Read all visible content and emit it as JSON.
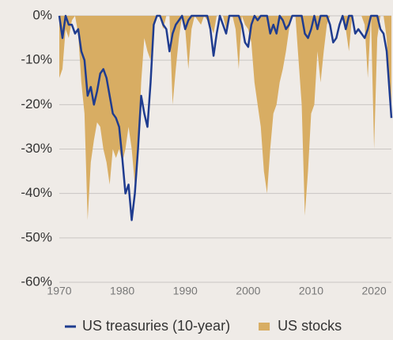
{
  "chart_data": {
    "type": "drawdown",
    "x": [
      1970,
      1970.5,
      1971,
      1971.5,
      1972,
      1972.5,
      1973,
      1973.5,
      1974,
      1974.5,
      1975,
      1975.5,
      1976,
      1976.5,
      1977,
      1977.5,
      1978,
      1978.5,
      1979,
      1979.5,
      1980,
      1980.5,
      1981,
      1981.5,
      1982,
      1982.5,
      1983,
      1983.5,
      1984,
      1984.5,
      1985,
      1985.5,
      1986,
      1986.5,
      1987,
      1987.5,
      1988,
      1988.5,
      1989,
      1989.5,
      1990,
      1990.5,
      1991,
      1991.5,
      1992,
      1992.5,
      1993,
      1993.5,
      1994,
      1994.5,
      1995,
      1995.5,
      1996,
      1996.5,
      1997,
      1997.5,
      1998,
      1998.5,
      1999,
      1999.5,
      2000,
      2000.5,
      2001,
      2001.5,
      2002,
      2002.5,
      2003,
      2003.5,
      2004,
      2004.5,
      2005,
      2005.5,
      2006,
      2006.5,
      2007,
      2007.5,
      2008,
      2008.5,
      2009,
      2009.5,
      2010,
      2010.5,
      2011,
      2011.5,
      2012,
      2012.5,
      2013,
      2013.5,
      2014,
      2014.5,
      2015,
      2015.5,
      2016,
      2016.5,
      2017,
      2017.5,
      2018,
      2018.5,
      2019,
      2019.5,
      2020,
      2020.5,
      2021,
      2021.5,
      2022,
      2022.5,
      2022.75
    ],
    "series": [
      {
        "name": "US treasuries (10-year)",
        "color": "#1f3c8f",
        "style": "line",
        "values": [
          0,
          -5,
          0,
          -2,
          -2,
          -4,
          -3,
          -8,
          -10,
          -18,
          -16,
          -20,
          -17,
          -13,
          -12,
          -14,
          -18,
          -22,
          -23,
          -25,
          -32,
          -40,
          -38,
          -46,
          -40,
          -30,
          -18,
          -22,
          -25,
          -15,
          -2,
          0,
          0,
          -2,
          -3,
          -8,
          -4,
          -2,
          -1,
          0,
          -3,
          -1,
          0,
          0,
          0,
          0,
          0,
          0,
          -3,
          -9,
          -4,
          0,
          -2,
          -4,
          0,
          0,
          0,
          0,
          -2,
          -6,
          -7,
          -2,
          0,
          -1,
          0,
          0,
          0,
          -4,
          -2,
          -4,
          0,
          -1,
          -3,
          -2,
          0,
          0,
          0,
          0,
          -4,
          -5,
          -3,
          0,
          -3,
          0,
          0,
          0,
          -2,
          -6,
          -5,
          -2,
          0,
          -3,
          0,
          0,
          -4,
          -3,
          -4,
          -5,
          -3,
          0,
          0,
          0,
          -3,
          -4,
          -8,
          -18,
          -23
        ]
      },
      {
        "name": "US stocks",
        "color": "#d8ad63",
        "style": "area",
        "values": [
          -14,
          -12,
          -3,
          -5,
          -1,
          0,
          -4,
          -15,
          -22,
          -46,
          -33,
          -28,
          -24,
          -25,
          -30,
          -33,
          -38,
          -30,
          -32,
          -30,
          -33,
          -30,
          -25,
          -30,
          -38,
          -32,
          -15,
          -5,
          -8,
          -10,
          -2,
          0,
          0,
          -3,
          0,
          0,
          -20,
          -12,
          -5,
          0,
          -3,
          -12,
          -3,
          0,
          -1,
          -2,
          0,
          -1,
          -2,
          -4,
          0,
          0,
          0,
          -3,
          0,
          0,
          -3,
          -12,
          0,
          -2,
          -3,
          -6,
          -15,
          -20,
          -25,
          -35,
          -40,
          -30,
          -22,
          -20,
          -15,
          -12,
          -8,
          -3,
          0,
          0,
          -10,
          -20,
          -45,
          -35,
          -22,
          -20,
          -8,
          -15,
          -8,
          -2,
          0,
          0,
          0,
          0,
          0,
          -3,
          -8,
          0,
          0,
          0,
          0,
          -2,
          -14,
          0,
          -30,
          -5,
          0,
          0,
          -5,
          -20,
          -22
        ]
      }
    ],
    "xlim": [
      1970,
      2022.75
    ],
    "xticks": [
      1970,
      1980,
      1990,
      2000,
      2010,
      2020
    ],
    "ylim": [
      -60,
      0
    ],
    "yticks": [
      {
        "value": 0,
        "label": "0%"
      },
      {
        "value": -10,
        "label": "-10%"
      },
      {
        "value": -20,
        "label": "-20%"
      },
      {
        "value": -30,
        "label": "-30%"
      },
      {
        "value": -40,
        "label": "-40%"
      },
      {
        "value": -50,
        "label": "-50%"
      },
      {
        "value": -60,
        "label": "-60%"
      }
    ],
    "grid": true,
    "legend": "bottom"
  }
}
